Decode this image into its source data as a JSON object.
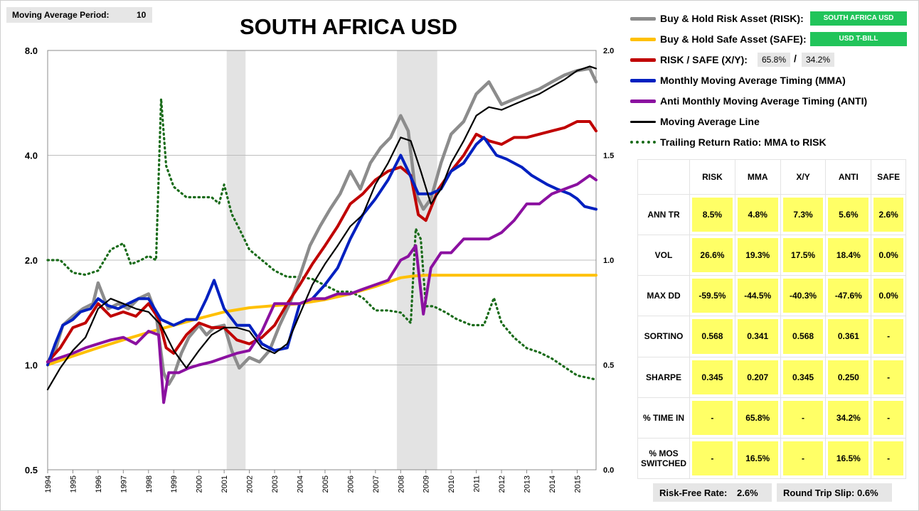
{
  "header": {
    "ma_label": "Moving Average Period:",
    "ma_value": "10",
    "title": "SOUTH AFRICA USD"
  },
  "legend": {
    "risk_label": "Buy & Hold Risk Asset (RISK):",
    "risk_tag": "SOUTH AFRICA USD",
    "safe_label": "Buy & Hold Safe Asset (SAFE):",
    "safe_tag": "USD T-BILL",
    "xy_label": "RISK / SAFE (X/Y):",
    "xy_risk_pct": "65.8%",
    "xy_sep": "/",
    "xy_safe_pct": "34.2%",
    "mma_label": "Monthly Moving Average Timing (MMA)",
    "anti_label": "Anti Monthly Moving Average Timing (ANTI)",
    "ma_line_label": "Moving Average Line",
    "ratio_label": "Trailing Return Ratio: MMA to RISK"
  },
  "colors": {
    "risk": "#8c8c8c",
    "safe": "#ffc000",
    "xy": "#c00000",
    "mma": "#0020c0",
    "anti": "#8b10a0",
    "ma": "#000000",
    "ratio": "#1a6b1a",
    "recession": "#e3e3e3",
    "tag": "#21c45a",
    "cell": "#ffff66"
  },
  "stats": {
    "columns": [
      "RISK",
      "MMA",
      "X/Y",
      "ANTI",
      "SAFE"
    ],
    "rows": [
      {
        "label": "ANN TR",
        "values": [
          "8.5%",
          "4.8%",
          "7.3%",
          "5.6%",
          "2.6%"
        ]
      },
      {
        "label": "VOL",
        "values": [
          "26.6%",
          "19.3%",
          "17.5%",
          "18.4%",
          "0.0%"
        ]
      },
      {
        "label": "MAX DD",
        "values": [
          "-59.5%",
          "-44.5%",
          "-40.3%",
          "-47.6%",
          "0.0%"
        ]
      },
      {
        "label": "SORTINO",
        "values": [
          "0.568",
          "0.341",
          "0.568",
          "0.361",
          "-"
        ]
      },
      {
        "label": "SHARPE",
        "values": [
          "0.345",
          "0.207",
          "0.345",
          "0.250",
          "-"
        ]
      },
      {
        "label": "% TIME IN",
        "values": [
          "-",
          "65.8%",
          "-",
          "34.2%",
          "-"
        ]
      },
      {
        "label": "% MOS SWITCHED",
        "values": [
          "-",
          "16.5%",
          "-",
          "16.5%",
          "-"
        ]
      }
    ]
  },
  "footer": {
    "rf_label": "Risk-Free Rate:",
    "rf_value": "2.6%",
    "slip_label": "Round Trip Slip:",
    "slip_value": "0.6%"
  },
  "chart_data": {
    "type": "line",
    "title": "SOUTH AFRICA USD",
    "y_left_scale": "log",
    "y_left_ticks": [
      "0.5",
      "1.0",
      "2.0",
      "4.0",
      "8.0"
    ],
    "y_left_range": [
      0.5,
      8.0
    ],
    "y_right_ticks": [
      "0.0",
      "0.5",
      "1.0",
      "1.5",
      "2.0"
    ],
    "y_right_range": [
      0.0,
      2.0
    ],
    "x_range": [
      1994.0,
      2015.75
    ],
    "x_ticks": [
      "1994",
      "1995",
      "1996",
      "1997",
      "1998",
      "1999",
      "2000",
      "2001",
      "2002",
      "2003",
      "2004",
      "2005",
      "2006",
      "2007",
      "2008",
      "2009",
      "2010",
      "2011",
      "2012",
      "2013",
      "2014",
      "2015"
    ],
    "recessions": [
      [
        2001.1,
        2001.85
      ],
      [
        2007.85,
        2009.45
      ]
    ],
    "series": [
      {
        "name": "Buy & Hold Risk Asset (RISK)",
        "key": "risk",
        "axis": "left",
        "x": [
          1994.0,
          1994.3,
          1994.6,
          1995.0,
          1995.4,
          1995.8,
          1996.0,
          1996.4,
          1996.8,
          1997.2,
          1997.6,
          1998.0,
          1998.3,
          1998.6,
          1998.8,
          1999.0,
          1999.3,
          1999.6,
          2000.0,
          2000.3,
          2000.6,
          2001.0,
          2001.3,
          2001.6,
          2002.0,
          2002.4,
          2002.8,
          2003.2,
          2003.6,
          2004.0,
          2004.4,
          2004.8,
          2005.2,
          2005.6,
          2006.0,
          2006.4,
          2006.8,
          2007.2,
          2007.6,
          2008.0,
          2008.3,
          2008.6,
          2008.9,
          2009.2,
          2009.6,
          2010.0,
          2010.5,
          2011.0,
          2011.5,
          2012.0,
          2012.5,
          2013.0,
          2013.5,
          2014.0,
          2014.5,
          2015.0,
          2015.5,
          2015.75
        ],
        "y": [
          1.02,
          1.1,
          1.3,
          1.38,
          1.45,
          1.5,
          1.72,
          1.45,
          1.5,
          1.45,
          1.55,
          1.6,
          1.4,
          0.95,
          0.88,
          0.93,
          1.08,
          1.2,
          1.3,
          1.22,
          1.28,
          1.3,
          1.1,
          0.98,
          1.05,
          1.02,
          1.1,
          1.3,
          1.5,
          1.8,
          2.2,
          2.5,
          2.8,
          3.1,
          3.6,
          3.2,
          3.8,
          4.2,
          4.5,
          5.2,
          4.7,
          3.1,
          2.8,
          3.0,
          3.8,
          4.6,
          5.0,
          6.0,
          6.5,
          5.6,
          5.8,
          6.0,
          6.2,
          6.5,
          6.8,
          7.0,
          7.1,
          6.5
        ]
      },
      {
        "name": "Buy & Hold Safe Asset (SAFE)",
        "key": "safe",
        "axis": "left",
        "x": [
          1994.0,
          1995.0,
          1996.0,
          1997.0,
          1998.0,
          1999.0,
          2000.0,
          2001.0,
          2002.0,
          2003.0,
          2004.0,
          2005.0,
          2006.0,
          2007.0,
          2008.0,
          2008.5,
          2009.0,
          2010.0,
          2011.0,
          2012.0,
          2013.0,
          2014.0,
          2015.0,
          2015.75
        ],
        "y": [
          1.0,
          1.06,
          1.12,
          1.18,
          1.24,
          1.3,
          1.36,
          1.42,
          1.46,
          1.48,
          1.5,
          1.54,
          1.6,
          1.68,
          1.78,
          1.8,
          1.81,
          1.81,
          1.81,
          1.81,
          1.81,
          1.81,
          1.81,
          1.81
        ]
      },
      {
        "name": "RISK / SAFE (X/Y)",
        "key": "xy",
        "axis": "left",
        "x": [
          1994.0,
          1994.5,
          1995.0,
          1995.5,
          1996.0,
          1996.5,
          1997.0,
          1997.5,
          1998.0,
          1998.4,
          1998.7,
          1999.0,
          1999.5,
          2000.0,
          2000.5,
          2001.0,
          2001.5,
          2002.0,
          2002.5,
          2003.0,
          2003.5,
          2004.0,
          2004.5,
          2005.0,
          2005.5,
          2006.0,
          2006.5,
          2007.0,
          2007.5,
          2008.0,
          2008.4,
          2008.7,
          2009.0,
          2009.5,
          2010.0,
          2010.5,
          2011.0,
          2011.5,
          2012.0,
          2012.5,
          2013.0,
          2013.5,
          2014.0,
          2014.5,
          2015.0,
          2015.5,
          2015.75
        ],
        "y": [
          1.02,
          1.12,
          1.28,
          1.32,
          1.5,
          1.38,
          1.42,
          1.38,
          1.5,
          1.36,
          1.12,
          1.08,
          1.22,
          1.32,
          1.28,
          1.28,
          1.18,
          1.15,
          1.2,
          1.3,
          1.5,
          1.7,
          1.95,
          2.2,
          2.5,
          2.9,
          3.1,
          3.4,
          3.6,
          3.7,
          3.5,
          2.7,
          2.6,
          3.2,
          3.6,
          4.0,
          4.6,
          4.4,
          4.3,
          4.5,
          4.5,
          4.6,
          4.7,
          4.8,
          5.0,
          5.0,
          4.7
        ]
      },
      {
        "name": "Monthly Moving Average Timing (MMA)",
        "key": "mma",
        "axis": "left",
        "x": [
          1994.0,
          1994.3,
          1994.6,
          1995.0,
          1995.3,
          1995.7,
          1996.0,
          1996.4,
          1996.8,
          1997.2,
          1997.6,
          1998.0,
          1998.5,
          1999.0,
          1999.5,
          1999.9,
          2000.3,
          2000.6,
          2001.0,
          2001.5,
          2002.0,
          2002.5,
          2003.0,
          2003.5,
          2004.0,
          2004.5,
          2005.0,
          2005.5,
          2006.0,
          2006.5,
          2007.0,
          2007.5,
          2008.0,
          2008.3,
          2008.7,
          2009.2,
          2009.6,
          2010.0,
          2010.5,
          2011.0,
          2011.3,
          2011.8,
          2012.2,
          2012.8,
          2013.2,
          2013.8,
          2014.2,
          2014.7,
          2015.0,
          2015.3,
          2015.75
        ],
        "y": [
          1.0,
          1.15,
          1.3,
          1.35,
          1.42,
          1.45,
          1.55,
          1.48,
          1.45,
          1.5,
          1.55,
          1.55,
          1.35,
          1.3,
          1.35,
          1.35,
          1.55,
          1.75,
          1.45,
          1.3,
          1.3,
          1.15,
          1.1,
          1.12,
          1.5,
          1.55,
          1.7,
          1.9,
          2.3,
          2.7,
          3.0,
          3.4,
          4.0,
          3.6,
          3.1,
          3.1,
          3.2,
          3.6,
          3.8,
          4.3,
          4.5,
          4.0,
          3.9,
          3.7,
          3.5,
          3.3,
          3.2,
          3.1,
          3.0,
          2.85,
          2.8
        ]
      },
      {
        "name": "Anti Monthly Moving Average Timing (ANTI)",
        "key": "anti",
        "axis": "left",
        "x": [
          1994.0,
          1994.5,
          1995.0,
          1995.5,
          1996.0,
          1996.5,
          1997.0,
          1997.5,
          1998.0,
          1998.4,
          1998.6,
          1998.8,
          1999.2,
          1999.6,
          2000.0,
          2000.5,
          2001.0,
          2001.5,
          2002.0,
          2002.5,
          2003.0,
          2003.5,
          2004.0,
          2004.5,
          2005.0,
          2005.5,
          2006.0,
          2006.5,
          2007.0,
          2007.5,
          2008.0,
          2008.3,
          2008.6,
          2008.9,
          2009.2,
          2009.6,
          2010.0,
          2010.5,
          2011.0,
          2011.5,
          2012.0,
          2012.5,
          2013.0,
          2013.5,
          2014.0,
          2014.5,
          2015.0,
          2015.5,
          2015.75
        ],
        "y": [
          1.02,
          1.05,
          1.08,
          1.12,
          1.15,
          1.18,
          1.2,
          1.15,
          1.25,
          1.22,
          0.78,
          0.95,
          0.95,
          0.98,
          1.0,
          1.02,
          1.05,
          1.08,
          1.1,
          1.25,
          1.5,
          1.5,
          1.5,
          1.55,
          1.55,
          1.6,
          1.6,
          1.65,
          1.7,
          1.75,
          2.0,
          2.05,
          2.2,
          1.4,
          1.9,
          2.1,
          2.1,
          2.3,
          2.3,
          2.3,
          2.4,
          2.6,
          2.9,
          2.9,
          3.1,
          3.2,
          3.3,
          3.5,
          3.4
        ]
      },
      {
        "name": "Moving Average Line",
        "key": "ma",
        "axis": "left",
        "x": [
          1994.0,
          1994.5,
          1995.0,
          1995.5,
          1996.0,
          1996.5,
          1997.0,
          1997.5,
          1998.0,
          1998.5,
          1999.0,
          1999.5,
          2000.0,
          2000.5,
          2001.0,
          2001.5,
          2002.0,
          2002.5,
          2003.0,
          2003.5,
          2004.0,
          2004.5,
          2005.0,
          2005.5,
          2006.0,
          2006.5,
          2007.0,
          2007.5,
          2008.0,
          2008.4,
          2008.8,
          2009.2,
          2009.6,
          2010.0,
          2010.5,
          2011.0,
          2011.5,
          2012.0,
          2012.5,
          2013.0,
          2013.5,
          2014.0,
          2014.5,
          2015.0,
          2015.5,
          2015.75
        ],
        "y": [
          0.85,
          0.98,
          1.1,
          1.2,
          1.45,
          1.55,
          1.5,
          1.45,
          1.42,
          1.3,
          1.1,
          0.98,
          1.1,
          1.22,
          1.28,
          1.28,
          1.25,
          1.12,
          1.08,
          1.15,
          1.4,
          1.7,
          1.95,
          2.2,
          2.5,
          2.7,
          3.3,
          3.8,
          4.5,
          4.4,
          3.6,
          2.9,
          3.2,
          3.8,
          4.4,
          5.2,
          5.5,
          5.4,
          5.6,
          5.8,
          6.0,
          6.3,
          6.6,
          7.0,
          7.2,
          7.1
        ]
      },
      {
        "name": "Trailing Return Ratio: MMA to RISK",
        "key": "ratio",
        "axis": "right",
        "x": [
          1994.0,
          1994.5,
          1995.0,
          1995.5,
          1996.0,
          1996.5,
          1997.0,
          1997.3,
          1997.7,
          1998.0,
          1998.3,
          1998.5,
          1998.7,
          1999.0,
          1999.5,
          2000.0,
          2000.5,
          2000.8,
          2001.0,
          2001.3,
          2001.6,
          2002.0,
          2002.5,
          2003.0,
          2003.5,
          2004.0,
          2004.5,
          2005.0,
          2005.5,
          2006.0,
          2006.5,
          2007.0,
          2007.5,
          2008.0,
          2008.4,
          2008.6,
          2008.8,
          2009.0,
          2009.3,
          2009.8,
          2010.2,
          2010.8,
          2011.3,
          2011.7,
          2012.0,
          2012.5,
          2013.0,
          2013.5,
          2014.0,
          2014.5,
          2015.0,
          2015.75
        ],
        "y": [
          1.0,
          1.0,
          0.94,
          0.93,
          0.95,
          1.05,
          1.08,
          0.98,
          1.0,
          1.02,
          1.0,
          1.77,
          1.45,
          1.35,
          1.3,
          1.3,
          1.3,
          1.27,
          1.36,
          1.22,
          1.15,
          1.05,
          1.0,
          0.95,
          0.92,
          0.92,
          0.91,
          0.88,
          0.85,
          0.85,
          0.82,
          0.76,
          0.76,
          0.75,
          0.7,
          1.15,
          1.1,
          0.78,
          0.78,
          0.75,
          0.72,
          0.69,
          0.69,
          0.82,
          0.7,
          0.63,
          0.58,
          0.56,
          0.53,
          0.49,
          0.45,
          0.43
        ]
      }
    ]
  }
}
